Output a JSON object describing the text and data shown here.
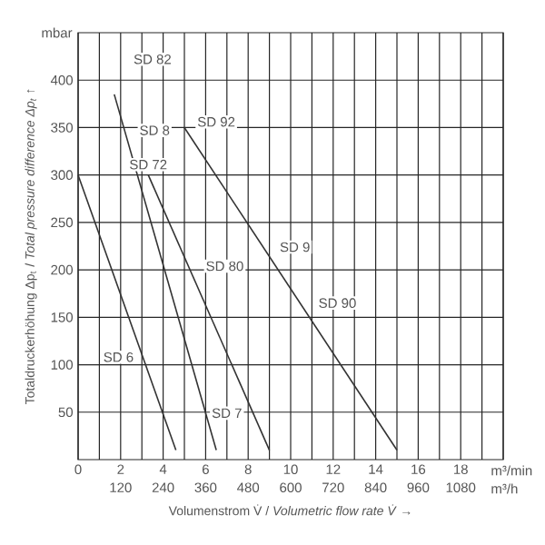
{
  "chart_data": {
    "type": "line",
    "xlabel": "Volumenstrom V̇ / *Volumetric flow rate V̇* →",
    "ylabel": "Totaldruckerhöhung Δp$_{t}$ / *Total pressure difference Δp$_{t}$* ↑",
    "xlim": [
      0,
      20
    ],
    "ylim": [
      0,
      450
    ],
    "xticks": [
      0,
      {
        "value": 1,
        "label": null
      },
      2,
      {
        "value": 3,
        "label": null
      },
      4,
      {
        "value": 5,
        "label": null
      },
      6,
      {
        "value": 7,
        "label": null
      },
      8,
      {
        "value": 9,
        "label": null
      },
      10,
      {
        "value": 11,
        "label": null
      },
      12,
      {
        "value": 13,
        "label": null
      },
      14,
      {
        "value": 15,
        "label": null
      },
      16,
      {
        "value": 17,
        "label": null
      },
      18,
      {
        "value": 19,
        "label": null
      },
      {
        "value": 20,
        "label": null
      }
    ],
    "yticks": [
      50,
      100,
      150,
      200,
      250,
      300,
      350,
      400
    ],
    "x2lim": [
      0,
      1200
    ],
    "x2ticks": [
      120,
      240,
      360,
      480,
      600,
      720,
      840,
      960,
      1080
    ],
    "grid": true,
    "marker": "none",
    "line_style": "solid",
    "series": [
      {
        "color": "#333333",
        "x": [
          0,
          4.6
        ],
        "values": [
          300,
          10
        ]
      },
      {
        "color": "#333333",
        "x": [
          1.7,
          6.5
        ],
        "values": [
          385,
          10
        ]
      },
      {
        "color": "#333333",
        "x": [
          3.3,
          9.0
        ],
        "values": [
          300,
          10
        ]
      },
      {
        "color": "#333333",
        "x": [
          5.0,
          15.0
        ],
        "values": [
          350,
          10
        ]
      }
    ],
    "annotations": [
      "mbar",
      "m³/min",
      "m³/h",
      {
        "text": "SD 82",
        "x": 3.5,
        "y": 422
      },
      {
        "text": "SD 8",
        "x": 3.6,
        "y": 347
      },
      {
        "text": "SD 92",
        "x": 6.5,
        "y": 356
      },
      {
        "text": "SD 72",
        "x": 3.3,
        "y": 311
      },
      {
        "text": "SD 9",
        "x": 10.2,
        "y": 224
      },
      {
        "text": "SD 80",
        "x": 6.9,
        "y": 204
      },
      {
        "text": "SD 90",
        "x": 12.2,
        "y": 165
      },
      {
        "text": "SD 6",
        "x": 1.9,
        "y": 108
      },
      {
        "text": "SD 7",
        "x": 7.0,
        "y": 49
      }
    ]
  }
}
